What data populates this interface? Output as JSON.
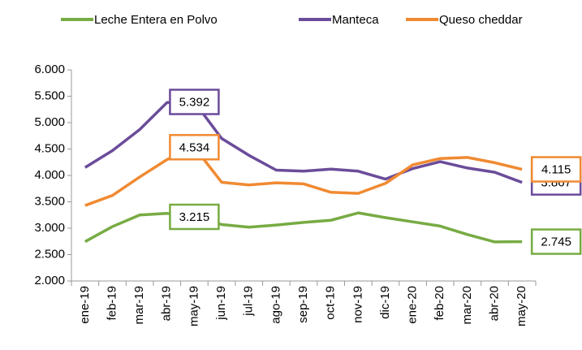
{
  "chart_data": {
    "type": "line",
    "categories": [
      "ene-19",
      "feb-19",
      "mar-19",
      "abr-19",
      "may-19",
      "jun-19",
      "jul-19",
      "ago-19",
      "sep-19",
      "oct-19",
      "nov-19",
      "dic-19",
      "ene-20",
      "feb-20",
      "mar-20",
      "abr-20",
      "may-20"
    ],
    "series": [
      {
        "name": "Leche Entera en Polvo",
        "color": "#77ab43",
        "values": [
          2745,
          3030,
          3250,
          3280,
          3215,
          3070,
          3020,
          3060,
          3110,
          3150,
          3290,
          3200,
          3120,
          3040,
          2880,
          2740,
          2745
        ],
        "value_labels": [
          null,
          null,
          null,
          null,
          "3.215",
          null,
          null,
          null,
          null,
          null,
          null,
          null,
          null,
          null,
          null,
          null,
          "2.745"
        ]
      },
      {
        "name": "Manteca",
        "color": "#6b4c9a",
        "values": [
          4150,
          4470,
          4870,
          5380,
          5392,
          4700,
          4380,
          4100,
          4080,
          4120,
          4080,
          3930,
          4130,
          4260,
          4140,
          4060,
          3867
        ],
        "value_labels": [
          null,
          null,
          null,
          null,
          "5.392",
          null,
          null,
          null,
          null,
          null,
          null,
          null,
          null,
          null,
          null,
          null,
          "3.867"
        ]
      },
      {
        "name": "Queso cheddar",
        "color": "#f08a32",
        "values": [
          3430,
          3620,
          3970,
          4300,
          4534,
          3870,
          3820,
          3860,
          3840,
          3680,
          3660,
          3850,
          4200,
          4320,
          4340,
          4240,
          4115
        ],
        "value_labels": [
          null,
          null,
          null,
          null,
          "4.534",
          null,
          null,
          null,
          null,
          null,
          null,
          null,
          null,
          null,
          null,
          null,
          "4.115"
        ]
      }
    ],
    "ylim": [
      2000,
      6000
    ],
    "yticks": [
      {
        "value": 2000,
        "label": "2.000"
      },
      {
        "value": 2500,
        "label": "2.500"
      },
      {
        "value": 3000,
        "label": "3.000"
      },
      {
        "value": 3500,
        "label": "3.500"
      },
      {
        "value": 4000,
        "label": "4.000"
      },
      {
        "value": 4500,
        "label": "4.500"
      },
      {
        "value": 5000,
        "label": "5.000"
      },
      {
        "value": 5500,
        "label": "5.500"
      },
      {
        "value": 6000,
        "label": "6.000"
      }
    ],
    "grid": false,
    "legend": "top"
  }
}
